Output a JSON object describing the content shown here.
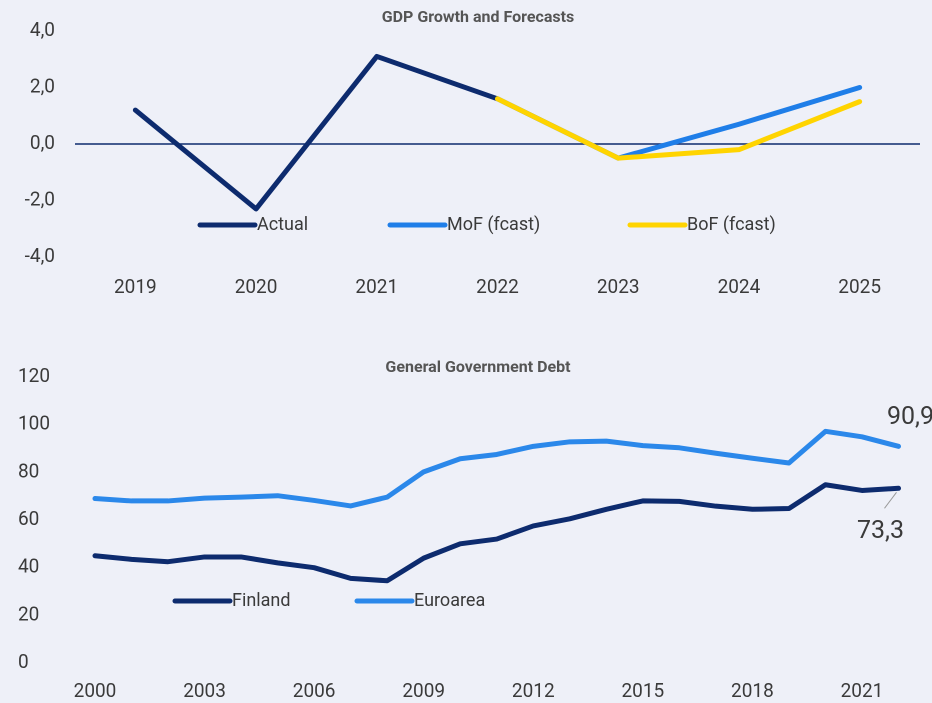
{
  "chart_data": [
    {
      "type": "line",
      "title": "GDP Growth and Forecasts",
      "categories": [
        "2019",
        "2020",
        "2021",
        "2022",
        "2023",
        "2024",
        "2025"
      ],
      "series": [
        {
          "name": "Actual",
          "color": "#0d2b6e",
          "values": [
            1.2,
            -2.3,
            3.1,
            1.6,
            null,
            null,
            null
          ]
        },
        {
          "name": "MoF (fcast)",
          "color": "#1f7ee8",
          "values": [
            null,
            null,
            null,
            1.6,
            -0.5,
            0.7,
            2.0
          ]
        },
        {
          "name": "BoF (fcast)",
          "color": "#ffd400",
          "values": [
            null,
            null,
            null,
            1.6,
            -0.5,
            -0.2,
            1.5
          ]
        }
      ],
      "ylim": [
        -4,
        4
      ],
      "yticks": [
        {
          "value": 4,
          "label": "4,0"
        },
        {
          "value": 2,
          "label": "2,0"
        },
        {
          "value": 0,
          "label": "0,0"
        },
        {
          "value": -2,
          "label": "-2,0"
        },
        {
          "value": -4,
          "label": "-4,0"
        }
      ],
      "grid": false,
      "legend": "bottom"
    },
    {
      "type": "line",
      "title": "General Government Debt",
      "x": [
        2000,
        2001,
        2002,
        2003,
        2004,
        2005,
        2006,
        2007,
        2008,
        2009,
        2010,
        2011,
        2012,
        2013,
        2014,
        2015,
        2016,
        2017,
        2018,
        2019,
        2020,
        2021,
        2022
      ],
      "series": [
        {
          "name": "Finland",
          "color": "#0d2b6e",
          "values": [
            45,
            43.5,
            42.5,
            44.5,
            44.5,
            42,
            40,
            35.5,
            34.5,
            44,
            50,
            52,
            57.5,
            60.5,
            64.5,
            68,
            67.8,
            65.8,
            64.5,
            64.8,
            74.8,
            72.4,
            73.3
          ],
          "value_labels": [
            null,
            null,
            null,
            null,
            null,
            null,
            null,
            null,
            null,
            null,
            null,
            null,
            null,
            null,
            null,
            null,
            null,
            null,
            null,
            null,
            null,
            null,
            "73,3"
          ]
        },
        {
          "name": "Euroarea",
          "color": "#2b88ea",
          "values": [
            69,
            68,
            68,
            69.2,
            69.6,
            70.2,
            68.2,
            65.9,
            69.6,
            80.2,
            85.7,
            87.5,
            90.9,
            92.8,
            93.1,
            91.2,
            90.3,
            88,
            85.9,
            83.9,
            97.2,
            94.9,
            90.9
          ],
          "value_labels": [
            null,
            null,
            null,
            null,
            null,
            null,
            null,
            null,
            null,
            null,
            null,
            null,
            null,
            null,
            null,
            null,
            null,
            null,
            null,
            null,
            null,
            null,
            "90,9"
          ]
        }
      ],
      "xlim": [
        2000,
        2022
      ],
      "xticks": [
        2000,
        2003,
        2006,
        2009,
        2012,
        2015,
        2018,
        2021
      ],
      "ylim": [
        0,
        120
      ],
      "yticks": [
        0,
        20,
        40,
        60,
        80,
        100,
        120
      ],
      "grid": false,
      "legend": "bottom"
    }
  ]
}
